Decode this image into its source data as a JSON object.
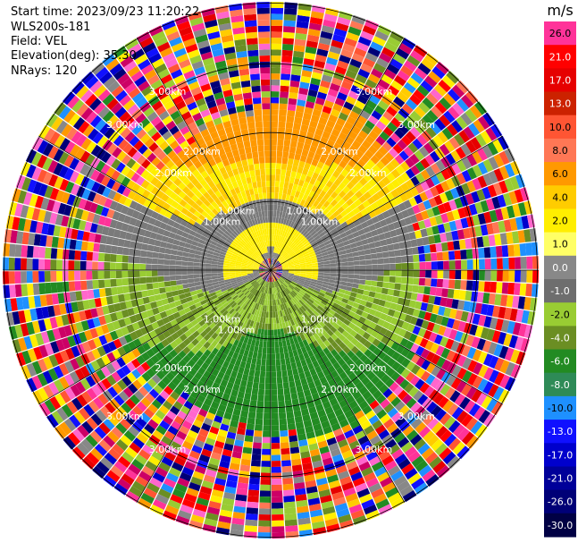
{
  "info": {
    "start_time": "Start time: 2023/09/23 11:20:22",
    "instrument": "WLS200s-181",
    "field": "Field: VEL",
    "elevation": "Elevation(deg): 35.30",
    "nrays": "NRays: 120"
  },
  "chart_data": {
    "type": "heatmap",
    "projection": "polar (PPI scan)",
    "field": "VEL",
    "units": "m/s",
    "range_ring_labels": [
      "1.00km",
      "2.00km",
      "3.00km"
    ],
    "range_ring_values_km": [
      1.0,
      2.0,
      3.0
    ],
    "max_range_km": 3.9,
    "n_rays": 120,
    "colorbar": {
      "label": "m/s",
      "ticks": [
        "26.0",
        "21.0",
        "17.0",
        "13.0",
        "10.0",
        "8.0",
        "6.0",
        "4.0",
        "2.0",
        "1.0",
        "0.0",
        "-1.0",
        "-2.0",
        "-4.0",
        "-6.0",
        "-8.0",
        "-10.0",
        "-13.0",
        "-17.0",
        "-21.0",
        "-26.0",
        "-30.0"
      ],
      "colors": [
        "#ff3399",
        "#ff0000",
        "#e60000",
        "#cc2200",
        "#ff5533",
        "#ff7755",
        "#ff9900",
        "#ffcc00",
        "#ffee00",
        "#ffff66",
        "#888888",
        "#6e6e6e",
        "#99cc33",
        "#6b8e23",
        "#228b22",
        "#2e8b57",
        "#1e90ff",
        "#1010ff",
        "#0000cc",
        "#000099",
        "#000077",
        "#000044"
      ]
    },
    "velocity_pattern": {
      "positive_toward_top": "yellow/orange (2–6 m/s)",
      "near_zero_middle": "gray (0 m/s)",
      "negative_toward_bottom": "green (-2 to -8 m/s)",
      "outer_range": "noise (random colors)"
    }
  }
}
